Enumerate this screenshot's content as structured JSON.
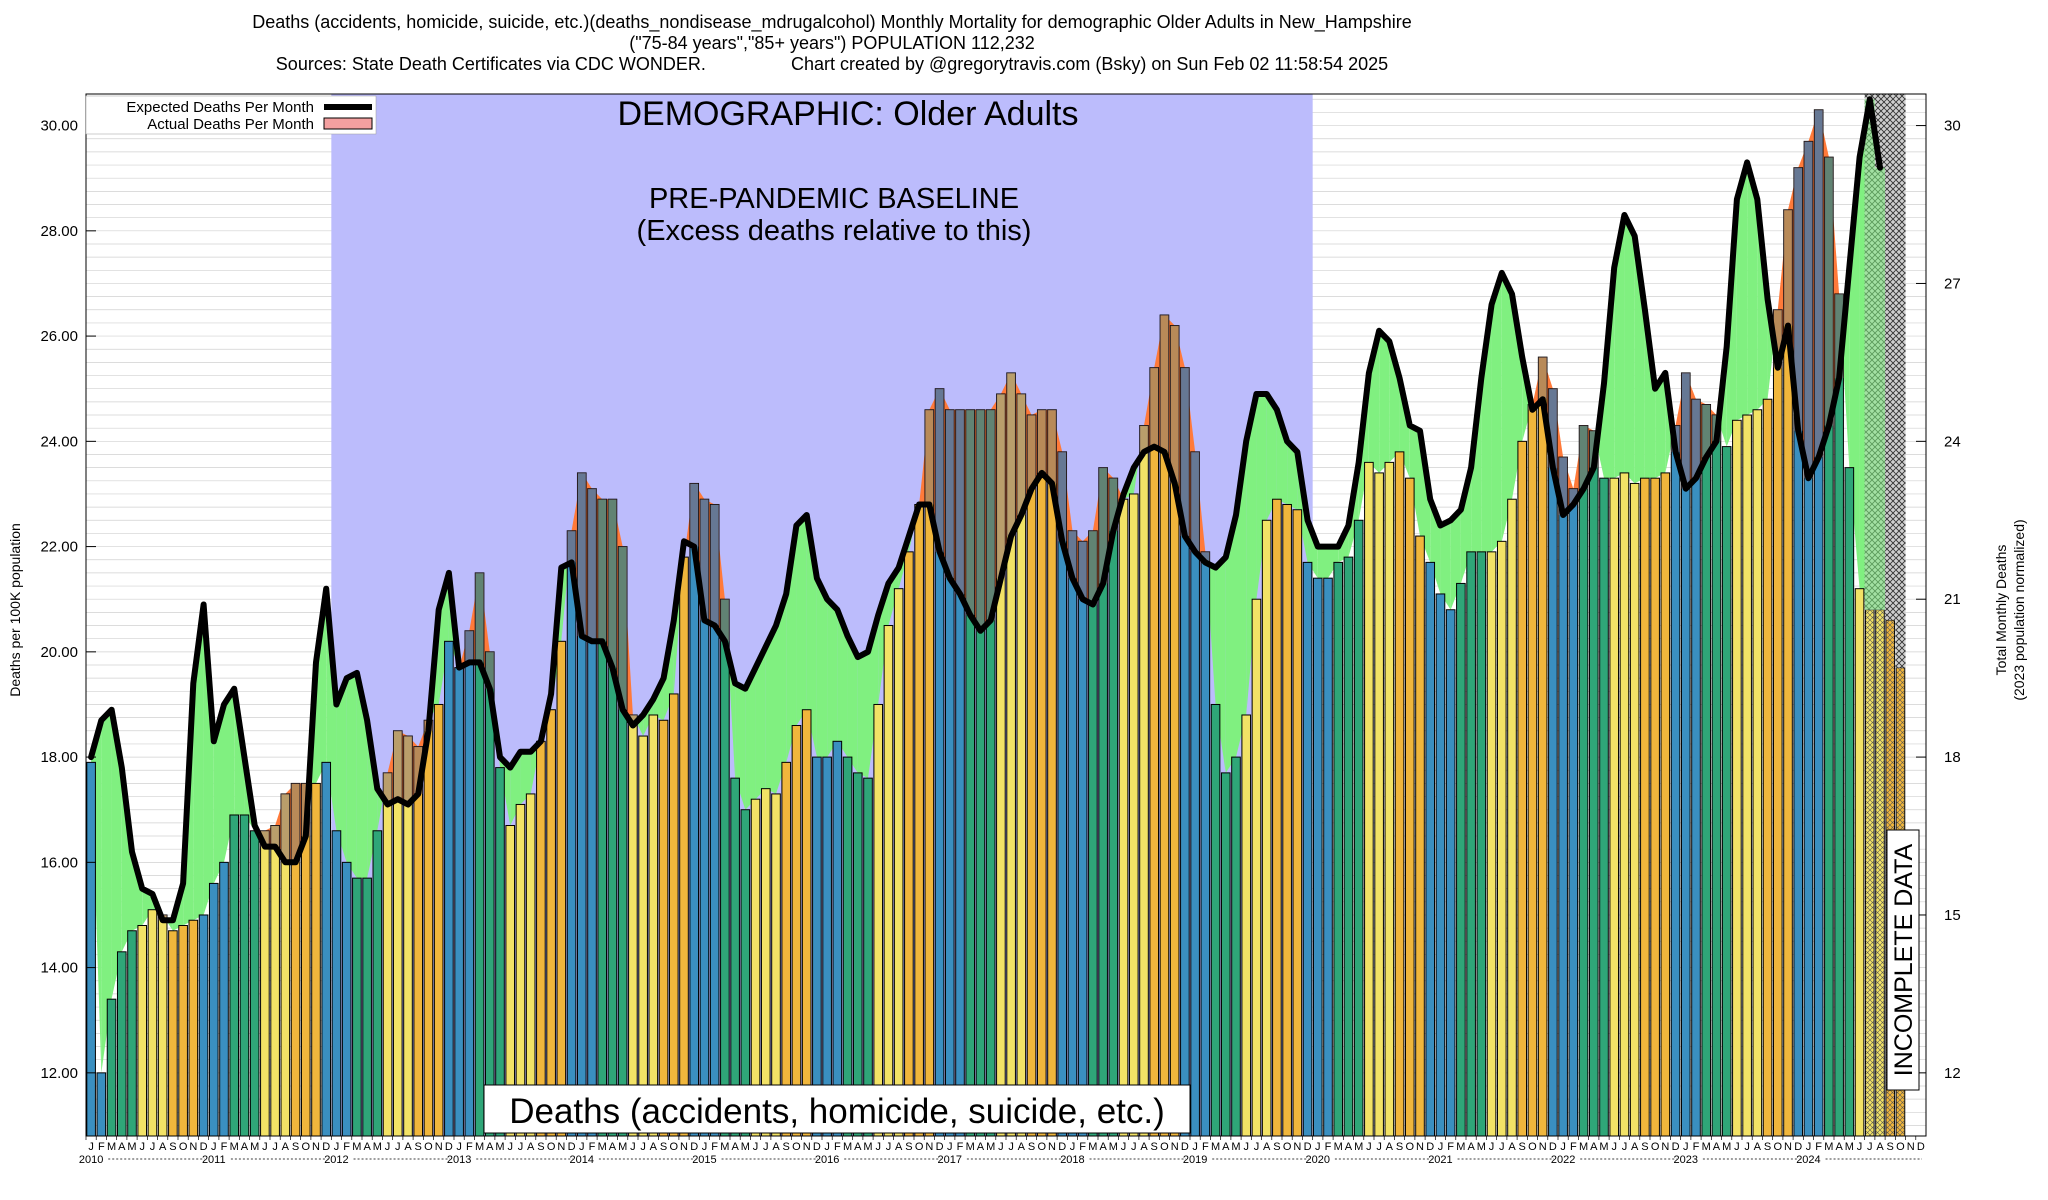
{
  "header": {
    "line1": "Deaths (accidents, homicide, suicide, etc.)(deaths_nondisease_mdrugalcohol) Monthly Mortality for demographic Older Adults in New_Hampshire",
    "line2": "(\"75-84 years\",\"85+ years\") POPULATION 112,232",
    "line3": "Sources: State Death Certificates via CDC WONDER.                 Chart created by @gregorytravis.com (Bsky) on Sun Feb 02 11:58:54 2025"
  },
  "chart_data": {
    "type": "bar",
    "title": "DEMOGRAPHIC: Older Adults",
    "xlabel": "",
    "ylabel": "Deaths per 100K population",
    "y2label": "Total Monthly Deaths",
    "y2sublabel": "(2023 population normalized)",
    "ylim": [
      10.8,
      30.6
    ],
    "y2lim": [
      10.8,
      30.6
    ],
    "yticks": [
      "12.00",
      "14.00",
      "16.00",
      "18.00",
      "20.00",
      "22.00",
      "24.00",
      "26.00",
      "28.00",
      "30.00"
    ],
    "y2ticks": [
      "12",
      "15",
      "18",
      "21",
      "24",
      "27",
      "30"
    ],
    "grid": "horizontal",
    "legend_position": "top-left",
    "legend": [
      "Expected Deaths Per Month",
      "Actual Deaths Per Month"
    ],
    "annotations": {
      "baseline_title": "PRE-PANDEMIC BASELINE",
      "baseline_subtitle": "(Excess deaths relative to this)",
      "cause_label": "Deaths (accidents, homicide, suicide, etc.)",
      "incomplete_label": "INCOMPLETE DATA"
    },
    "baseline_period": [
      "2012-01",
      "2019-12"
    ],
    "incomplete_period": [
      "2024-07",
      "2024-12"
    ],
    "month_letters": [
      "J",
      "F",
      "M",
      "A",
      "M",
      "J",
      "J",
      "A",
      "S",
      "O",
      "N",
      "D"
    ],
    "years": [
      "2010",
      "2011",
      "2012",
      "2013",
      "2014",
      "2015",
      "2016",
      "2017",
      "2018",
      "2019",
      "2020",
      "2021",
      "2022",
      "2023",
      "2024"
    ],
    "season_colors": {
      "winter": "#3a8fc0",
      "spring": "#2fa678",
      "summer": "#f2e266",
      "fall": "#f0b63c"
    },
    "colors": {
      "baseline": "#bcbcfc",
      "excess": "#ff7a3a",
      "deficit": "#80f080",
      "expected_line": "#000000",
      "overlap": "#8a6670"
    },
    "actual": [
      17.9,
      12.0,
      13.4,
      14.3,
      14.7,
      14.8,
      15.1,
      15.0,
      14.7,
      14.8,
      14.9,
      15.0,
      15.6,
      16.0,
      16.9,
      16.9,
      16.6,
      16.6,
      16.7,
      17.3,
      17.5,
      17.5,
      17.5,
      17.9,
      16.6,
      16.0,
      15.7,
      15.7,
      16.6,
      17.7,
      18.5,
      18.4,
      18.2,
      18.7,
      19.0,
      20.2,
      19.7,
      20.4,
      21.5,
      20.0,
      17.8,
      16.7,
      17.1,
      17.3,
      18.3,
      18.9,
      20.2,
      22.3,
      23.4,
      23.1,
      22.9,
      22.9,
      22.0,
      18.8,
      18.4,
      18.8,
      18.7,
      19.2,
      21.8,
      23.2,
      22.9,
      22.8,
      21.0,
      17.6,
      17.0,
      17.2,
      17.4,
      17.3,
      17.9,
      18.6,
      18.9,
      18.0,
      18.0,
      18.3,
      18.0,
      17.7,
      17.6,
      19.0,
      20.5,
      21.2,
      21.9,
      22.8,
      24.6,
      25.0,
      24.6,
      24.6,
      24.6,
      24.6,
      24.6,
      24.9,
      25.3,
      24.9,
      24.5,
      24.6,
      24.6,
      23.8,
      22.3,
      22.1,
      22.3,
      23.5,
      23.3,
      22.9,
      23.0,
      24.3,
      25.4,
      26.4,
      26.2,
      25.4,
      23.8,
      21.9,
      19.0,
      17.7,
      18.0,
      18.8,
      21.0,
      22.5,
      22.9,
      22.8,
      22.7,
      21.7,
      21.4,
      21.4,
      21.7,
      21.8,
      22.5,
      23.6,
      23.4,
      23.6,
      23.8,
      23.3,
      22.2,
      21.7,
      21.1,
      20.8,
      21.3,
      21.9,
      21.9,
      21.9,
      22.1,
      22.9,
      24.0,
      24.7,
      25.6,
      25.0,
      23.7,
      23.1,
      24.3,
      24.2,
      23.3,
      23.3,
      23.4,
      23.2,
      23.3,
      23.3,
      23.4,
      24.3,
      25.3,
      24.8,
      24.7,
      24.5,
      23.9,
      24.4,
      24.5,
      24.6,
      24.8,
      26.5,
      28.4,
      29.2,
      29.7,
      30.3,
      29.4,
      26.8,
      23.5,
      21.2,
      20.8,
      20.8,
      20.6,
      19.7
    ],
    "expected": [
      18.0,
      18.7,
      18.9,
      17.8,
      16.2,
      15.5,
      15.4,
      14.9,
      14.9,
      15.6,
      19.4,
      20.9,
      18.3,
      19.0,
      19.3,
      18.0,
      16.7,
      16.3,
      16.3,
      16.0,
      16.0,
      16.5,
      19.8,
      21.2,
      19.0,
      19.5,
      19.6,
      18.7,
      17.4,
      17.1,
      17.2,
      17.1,
      17.3,
      18.5,
      20.8,
      21.5,
      19.7,
      19.8,
      19.8,
      19.3,
      18.0,
      17.8,
      18.1,
      18.1,
      18.3,
      19.2,
      21.6,
      21.7,
      20.3,
      20.2,
      20.2,
      19.7,
      18.9,
      18.6,
      18.8,
      19.1,
      19.5,
      20.6,
      22.1,
      22.0,
      20.6,
      20.5,
      20.2,
      19.4,
      19.3,
      19.7,
      20.1,
      20.5,
      21.1,
      22.4,
      22.6,
      21.4,
      21.0,
      20.8,
      20.3,
      19.9,
      20.0,
      20.7,
      21.3,
      21.6,
      22.2,
      22.8,
      22.8,
      21.9,
      21.4,
      21.1,
      20.7,
      20.4,
      20.6,
      21.4,
      22.2,
      22.6,
      23.1,
      23.4,
      23.2,
      22.1,
      21.4,
      21.0,
      20.9,
      21.3,
      22.3,
      23.0,
      23.5,
      23.8,
      23.9,
      23.8,
      23.2,
      22.2,
      21.9,
      21.7,
      21.6,
      21.8,
      22.6,
      24.0,
      24.9,
      24.9,
      24.6,
      24.0,
      23.8,
      22.5,
      22.0,
      22.0,
      22.0,
      22.4,
      23.6,
      25.3,
      26.1,
      25.9,
      25.2,
      24.3,
      24.2,
      22.9,
      22.4,
      22.5,
      22.7,
      23.5,
      25.2,
      26.6,
      27.2,
      26.8,
      25.6,
      24.6,
      24.8,
      23.5,
      22.6,
      22.8,
      23.1,
      23.5,
      25.1,
      27.3,
      28.3,
      27.9,
      26.5,
      25.0,
      25.3,
      23.8,
      23.1,
      23.3,
      23.7,
      24.0,
      25.8,
      28.6,
      29.3,
      28.6,
      26.7,
      25.4,
      26.2,
      24.2,
      23.3,
      23.7,
      24.3,
      25.2,
      27.3,
      29.4,
      30.5,
      29.2
    ]
  }
}
